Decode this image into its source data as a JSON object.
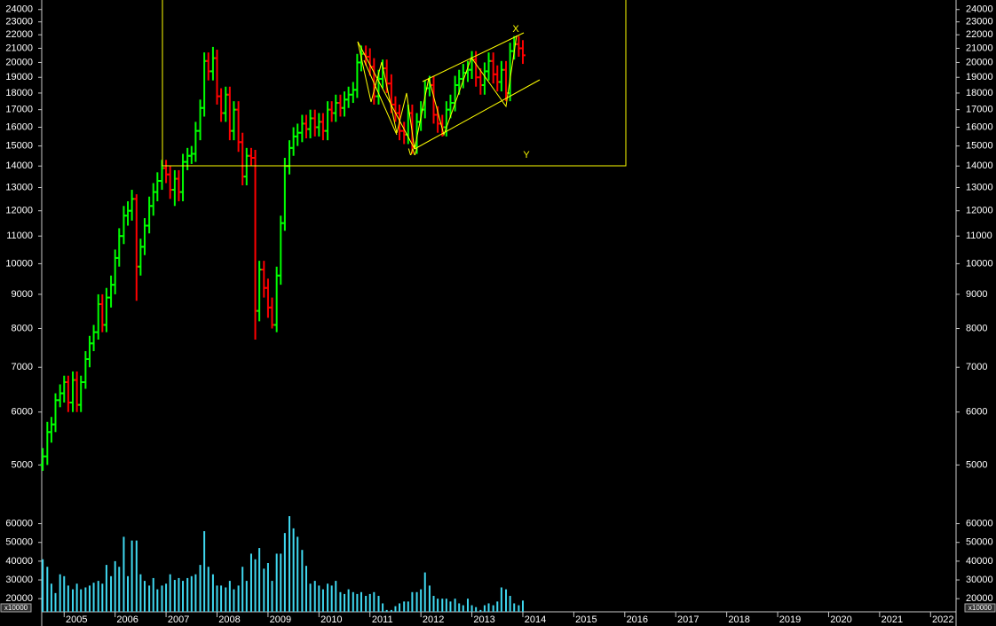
{
  "chart_data": {
    "type": "ohlc",
    "x": [
      2004.58,
      2004.67,
      2004.75,
      2004.83,
      2004.92,
      2005.0,
      2005.08,
      2005.17,
      2005.25,
      2005.33,
      2005.42,
      2005.5,
      2005.58,
      2005.67,
      2005.75,
      2005.83,
      2005.92,
      2006.0,
      2006.08,
      2006.17,
      2006.25,
      2006.33,
      2006.42,
      2006.5,
      2006.58,
      2006.67,
      2006.75,
      2006.83,
      2006.92,
      2007.0,
      2007.08,
      2007.17,
      2007.25,
      2007.33,
      2007.42,
      2007.5,
      2007.58,
      2007.67,
      2007.75,
      2007.83,
      2007.92,
      2008.0,
      2008.08,
      2008.17,
      2008.25,
      2008.33,
      2008.42,
      2008.5,
      2008.58,
      2008.67,
      2008.75,
      2008.83,
      2008.92,
      2009.0,
      2009.08,
      2009.17,
      2009.25,
      2009.33,
      2009.42,
      2009.5,
      2009.58,
      2009.67,
      2009.75,
      2009.83,
      2009.92,
      2010.0,
      2010.08,
      2010.17,
      2010.25,
      2010.33,
      2010.42,
      2010.5,
      2010.58,
      2010.67,
      2010.75,
      2010.83,
      2010.92,
      2011.0,
      2011.08,
      2011.17,
      2011.25,
      2011.33,
      2011.42,
      2011.5,
      2011.58,
      2011.67,
      2011.75,
      2011.83,
      2011.92,
      2012.0,
      2012.08,
      2012.17,
      2012.25,
      2012.33,
      2012.42,
      2012.5,
      2012.58,
      2012.67,
      2012.75,
      2012.83,
      2012.92,
      2013.0,
      2013.08,
      2013.17,
      2013.25,
      2013.33,
      2013.42,
      2013.5,
      2013.58,
      2013.67,
      2013.75,
      2013.83,
      2013.92,
      2014.0
    ],
    "open": [
      5000,
      5150,
      5600,
      5750,
      6250,
      6400,
      6650,
      6200,
      6700,
      6150,
      6650,
      7200,
      7600,
      7900,
      8700,
      8100,
      8900,
      9300,
      10200,
      11000,
      11800,
      12000,
      12500,
      9900,
      10600,
      11400,
      12200,
      12800,
      13300,
      13900,
      13600,
      12900,
      13400,
      12800,
      14200,
      14500,
      14600,
      15800,
      17100,
      20100,
      19400,
      20300,
      17800,
      16800,
      17900,
      15800,
      17000,
      15200,
      13500,
      14500,
      14400,
      8500,
      9800,
      9200,
      8600,
      8100,
      9600,
      11500,
      14000,
      14900,
      15500,
      15700,
      16200,
      15900,
      16500,
      16000,
      16300,
      15800,
      17000,
      16800,
      17400,
      17100,
      17600,
      17900,
      18200,
      20000,
      20600,
      20400,
      19700,
      17800,
      18900,
      19600,
      18600,
      17300,
      16800,
      15800,
      15600,
      16800,
      15000,
      16300,
      17000,
      18300,
      18500,
      16700,
      16200,
      16000,
      17000,
      17400,
      18500,
      18900,
      19300,
      19500,
      20200,
      19000,
      18500,
      19400,
      20100,
      19200,
      18700,
      19500,
      18000,
      20800,
      21300,
      21000
    ],
    "high": [
      5300,
      5800,
      5900,
      6400,
      6600,
      6800,
      6800,
      6900,
      6900,
      6800,
      7400,
      7800,
      8100,
      9000,
      9000,
      9200,
      9600,
      10500,
      11300,
      12200,
      12400,
      12900,
      12700,
      10900,
      11700,
      12600,
      13200,
      13700,
      14300,
      14300,
      14000,
      13800,
      13800,
      14600,
      14900,
      15000,
      16300,
      17600,
      20700,
      20700,
      21100,
      20900,
      18300,
      18400,
      18400,
      17500,
      17500,
      15700,
      14900,
      14900,
      14800,
      10100,
      10100,
      9500,
      8900,
      9900,
      11800,
      14400,
      15300,
      16000,
      16200,
      16700,
      16700,
      17000,
      17000,
      16800,
      16800,
      17500,
      17500,
      17900,
      17900,
      18100,
      18400,
      18700,
      20600,
      21200,
      21200,
      21000,
      20300,
      19500,
      20200,
      20200,
      19200,
      17800,
      17300,
      16300,
      17300,
      17300,
      16800,
      17500,
      18800,
      19100,
      19100,
      17200,
      16700,
      17500,
      17900,
      19100,
      19500,
      19900,
      20100,
      20800,
      20800,
      19600,
      20000,
      20700,
      20700,
      19800,
      20100,
      20100,
      21400,
      21900,
      21900,
      21600
    ],
    "low": [
      4900,
      5000,
      5400,
      5600,
      6100,
      6200,
      6000,
      6000,
      6000,
      6000,
      6500,
      7000,
      7400,
      7700,
      7900,
      7900,
      8600,
      9000,
      9900,
      10700,
      11400,
      11600,
      8800,
      9600,
      10300,
      11100,
      11800,
      12400,
      12900,
      13200,
      12500,
      12200,
      12400,
      12400,
      13800,
      14100,
      14200,
      15300,
      16600,
      18800,
      18800,
      17300,
      16300,
      16300,
      15300,
      15300,
      14700,
      13100,
      13100,
      14000,
      7700,
      8200,
      8900,
      8300,
      8000,
      7900,
      9300,
      11200,
      13600,
      14500,
      15000,
      15200,
      15400,
      15400,
      15500,
      15500,
      15300,
      15300,
      16300,
      16300,
      16600,
      16600,
      17100,
      17400,
      17700,
      19400,
      19800,
      19100,
      17300,
      17300,
      18300,
      18000,
      16800,
      16300,
      15300,
      15100,
      15100,
      14600,
      14600,
      15800,
      16500,
      17800,
      16200,
      15700,
      15500,
      15500,
      16500,
      16900,
      17900,
      18300,
      18700,
      18900,
      18400,
      17900,
      17900,
      18800,
      18600,
      18100,
      18100,
      17500,
      17500,
      20200,
      20400,
      19900
    ],
    "close": [
      5150,
      5600,
      5750,
      6250,
      6400,
      6650,
      6200,
      6700,
      6150,
      6650,
      7200,
      7600,
      7900,
      8700,
      8100,
      8900,
      9300,
      10200,
      11000,
      11800,
      12000,
      12500,
      9900,
      10600,
      11400,
      12200,
      12800,
      13300,
      13900,
      13600,
      12900,
      13400,
      12800,
      14200,
      14500,
      14600,
      15800,
      17100,
      20100,
      19400,
      20300,
      17800,
      16800,
      17900,
      15800,
      17000,
      15200,
      13500,
      14500,
      14400,
      8500,
      9800,
      9200,
      8600,
      8100,
      9600,
      11500,
      14000,
      14900,
      15500,
      15700,
      16200,
      15900,
      16500,
      16000,
      16300,
      15800,
      17000,
      16800,
      17400,
      17100,
      17600,
      17900,
      18200,
      20000,
      20600,
      20400,
      19700,
      17800,
      18900,
      19600,
      18600,
      17300,
      16800,
      15800,
      15600,
      16800,
      15000,
      16300,
      17000,
      18300,
      18500,
      16700,
      16200,
      16000,
      17000,
      17400,
      18500,
      18900,
      19300,
      19500,
      20200,
      19000,
      18500,
      19400,
      20100,
      19200,
      18700,
      19500,
      18000,
      20800,
      21300,
      21000,
      20500
    ],
    "up_color": "#00ff00",
    "down_color": "#ff0000",
    "log_scale": true,
    "ylim": [
      4350,
      24800
    ],
    "yticks": [
      5000,
      6000,
      7000,
      8000,
      9000,
      10000,
      11000,
      12000,
      13000,
      14000,
      15000,
      16000,
      17000,
      18000,
      19000,
      20000,
      21000,
      22000,
      23000,
      24000
    ],
    "xlim": [
      2004.56,
      2022.5
    ],
    "xticks": [
      2005,
      2006,
      2007,
      2008,
      2009,
      2010,
      2011,
      2012,
      2013,
      2014,
      2015,
      2016,
      2017,
      2018,
      2019,
      2020,
      2021,
      2022
    ],
    "volume": {
      "color": "#3fd8f0",
      "values": [
        41000,
        37000,
        28000,
        23000,
        33000,
        32000,
        27000,
        25000,
        28000,
        25000,
        26000,
        27000,
        28500,
        29500,
        28000,
        38000,
        32000,
        40000,
        37000,
        53000,
        32000,
        51000,
        51000,
        33000,
        29500,
        27000,
        31000,
        25000,
        27000,
        28000,
        33000,
        30000,
        31000,
        29500,
        31000,
        32000,
        33000,
        38000,
        56000,
        37000,
        33000,
        27000,
        27000,
        26000,
        29500,
        25000,
        27000,
        37000,
        29500,
        44000,
        41000,
        47000,
        36000,
        39000,
        29500,
        44000,
        44000,
        55000,
        64000,
        57500,
        53000,
        46000,
        37500,
        28000,
        29500,
        27000,
        25000,
        28000,
        27000,
        29500,
        23500,
        22500,
        25000,
        23500,
        22500,
        23500,
        21500,
        22500,
        23500,
        21500,
        17500,
        14000,
        14000,
        16000,
        17500,
        18500,
        18500,
        23500,
        23500,
        25000,
        34000,
        27000,
        21500,
        20000,
        20000,
        20000,
        18500,
        20000,
        17500,
        16500,
        20000,
        16500,
        15500,
        14000,
        16500,
        17500,
        16500,
        18500,
        26000,
        25000,
        21500,
        17500,
        16500,
        19000
      ],
      "ylim": [
        13000,
        65000
      ],
      "yticks": [
        20000,
        30000,
        40000,
        50000,
        60000
      ],
      "unit_label": "x10000"
    },
    "annotations": [
      "W",
      "X",
      "Y"
    ],
    "box_color": "#ffff00"
  }
}
